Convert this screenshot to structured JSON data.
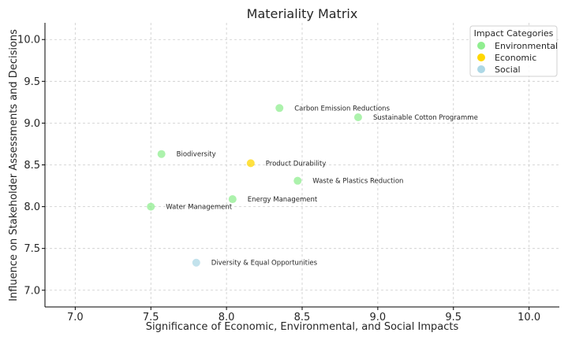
{
  "chart_data": {
    "type": "scatter",
    "title": "Materiality Matrix",
    "xlabel": "Significance of Economic, Environmental, and Social Impacts",
    "ylabel": "Influence on Stakeholder Assessments and Decisions",
    "xlim": [
      6.8,
      10.2
    ],
    "ylim": [
      6.8,
      10.2
    ],
    "xticks": [
      "7.0",
      "7.5",
      "8.0",
      "8.5",
      "9.0",
      "9.5",
      "10.0"
    ],
    "yticks": [
      "7.0",
      "7.5",
      "8.0",
      "8.5",
      "9.0",
      "9.5",
      "10.0"
    ],
    "grid": true,
    "legend": {
      "title": "Impact Categories",
      "placement": "top-right",
      "entries": [
        {
          "name": "Environmental",
          "color": "#90EE90"
        },
        {
          "name": "Economic",
          "color": "#FFD700"
        },
        {
          "name": "Social",
          "color": "#ADD8E6"
        }
      ]
    },
    "points": [
      {
        "label": "Carbon Emission Reductions",
        "x": 8.35,
        "y": 9.18,
        "category": "Environmental"
      },
      {
        "label": "Sustainable Cotton Programme",
        "x": 8.87,
        "y": 9.07,
        "category": "Environmental"
      },
      {
        "label": "Biodiversity",
        "x": 7.57,
        "y": 8.63,
        "category": "Environmental"
      },
      {
        "label": "Product Durability",
        "x": 8.16,
        "y": 8.52,
        "category": "Economic"
      },
      {
        "label": "Waste & Plastics Reduction",
        "x": 8.47,
        "y": 8.31,
        "category": "Environmental"
      },
      {
        "label": "Energy Management",
        "x": 8.04,
        "y": 8.09,
        "category": "Environmental"
      },
      {
        "label": "Water Management",
        "x": 7.5,
        "y": 8.0,
        "category": "Environmental"
      },
      {
        "label": "Diversity & Equal Opportunities",
        "x": 7.8,
        "y": 7.33,
        "category": "Social"
      }
    ]
  }
}
